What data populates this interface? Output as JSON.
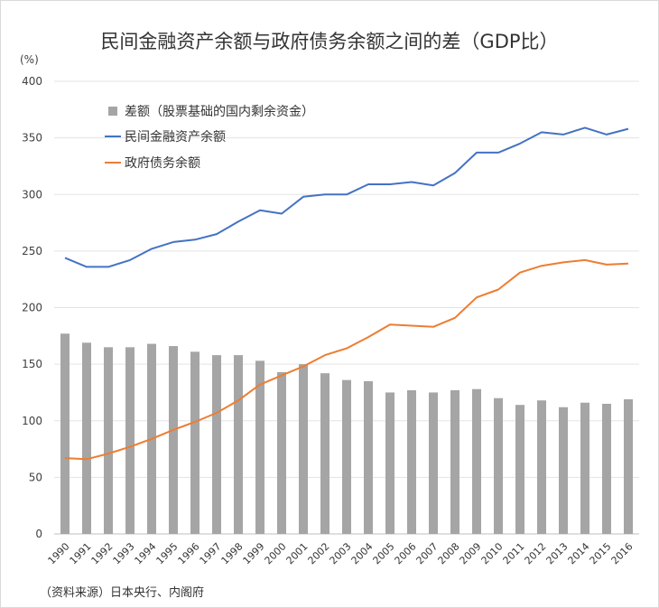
{
  "chart_data": {
    "type": "bar",
    "title": "民间金融资产余额与政府债务余额之间的差（GDP比）",
    "ylabel": "(%)",
    "ylim": [
      0,
      400
    ],
    "yticks": [
      0,
      50,
      100,
      150,
      200,
      250,
      300,
      350,
      400
    ],
    "grid": true,
    "legend_position": "top-left",
    "categories": [
      "1990",
      "1991",
      "1992",
      "1993",
      "1994",
      "1995",
      "1996",
      "1997",
      "1998",
      "1999",
      "2000",
      "2001",
      "2002",
      "2003",
      "2004",
      "2005",
      "2006",
      "2007",
      "2008",
      "2009",
      "2010",
      "2011",
      "2012",
      "2013",
      "2014",
      "2015",
      "2016"
    ],
    "series": [
      {
        "name": "差额（股票基础的国内剩余资金）",
        "type": "bar",
        "color": "#a5a5a5",
        "values": [
          177,
          169,
          165,
          165,
          168,
          166,
          161,
          158,
          158,
          153,
          143,
          150,
          142,
          136,
          135,
          125,
          127,
          125,
          127,
          128,
          120,
          114,
          118,
          112,
          116,
          115,
          119
        ]
      },
      {
        "name": "民间金融资产余额",
        "type": "line",
        "color": "#4472c4",
        "values": [
          244,
          236,
          236,
          242,
          252,
          258,
          260,
          265,
          276,
          286,
          283,
          298,
          300,
          300,
          309,
          309,
          311,
          308,
          319,
          337,
          337,
          345,
          355,
          353,
          359,
          353,
          358
        ]
      },
      {
        "name": "政府债务余额",
        "type": "line",
        "color": "#ed7d31",
        "values": [
          67,
          66,
          71,
          77,
          84,
          92,
          99,
          107,
          118,
          132,
          140,
          148,
          158,
          164,
          174,
          185,
          184,
          183,
          191,
          209,
          216,
          231,
          237,
          240,
          242,
          238,
          239
        ]
      }
    ]
  },
  "unit_label": "(%)",
  "source": "（资料来源）日本央行、内阁府"
}
